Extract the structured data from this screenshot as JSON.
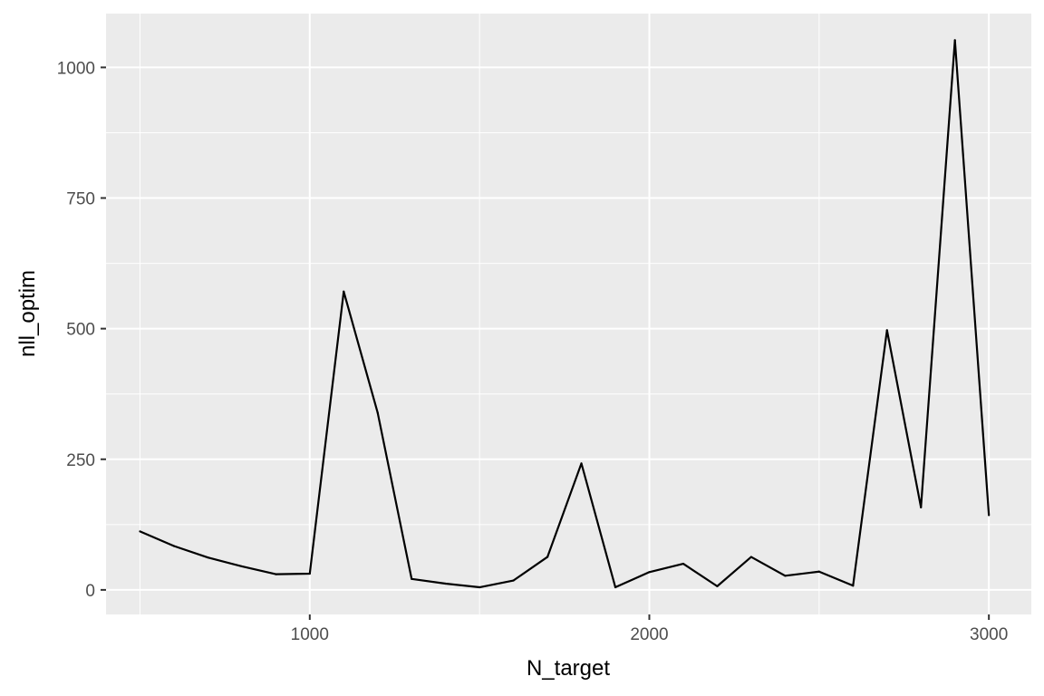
{
  "chart_data": {
    "type": "line",
    "title": "",
    "xlabel": "N_target",
    "ylabel": "nll_optim",
    "xlim": [
      400,
      3125
    ],
    "ylim": [
      -47,
      1103
    ],
    "x_ticks": [
      1000,
      2000,
      3000
    ],
    "x_tick_labels": [
      "1000",
      "2000",
      "3000"
    ],
    "x_minor_ticks": [
      500,
      1500,
      2500
    ],
    "y_ticks": [
      0,
      250,
      500,
      750,
      1000
    ],
    "y_tick_labels": [
      "0",
      "250",
      "500",
      "750",
      "1000"
    ],
    "y_minor_ticks": [
      125,
      375,
      625,
      875
    ],
    "grid": true,
    "legend": "none",
    "colors": {
      "panel": "#ebebeb",
      "grid": "#ffffff",
      "line": "#000000",
      "tick_label": "#4d4d4d",
      "tick": "#333333"
    },
    "series": [
      {
        "x": [
          500,
          600,
          700,
          800,
          900,
          1000,
          1100,
          1200,
          1300,
          1400,
          1500,
          1600,
          1700,
          1800,
          1900,
          2000,
          2100,
          2200,
          2300,
          2400,
          2500,
          2600,
          2700,
          2800,
          2900,
          3000
        ],
        "y": [
          112,
          84,
          62,
          45,
          30,
          31,
          571,
          339,
          21,
          12,
          5,
          18,
          63,
          242,
          5,
          34,
          50,
          7,
          63,
          27,
          35,
          8,
          497,
          158,
          1052,
          143
        ]
      }
    ]
  }
}
